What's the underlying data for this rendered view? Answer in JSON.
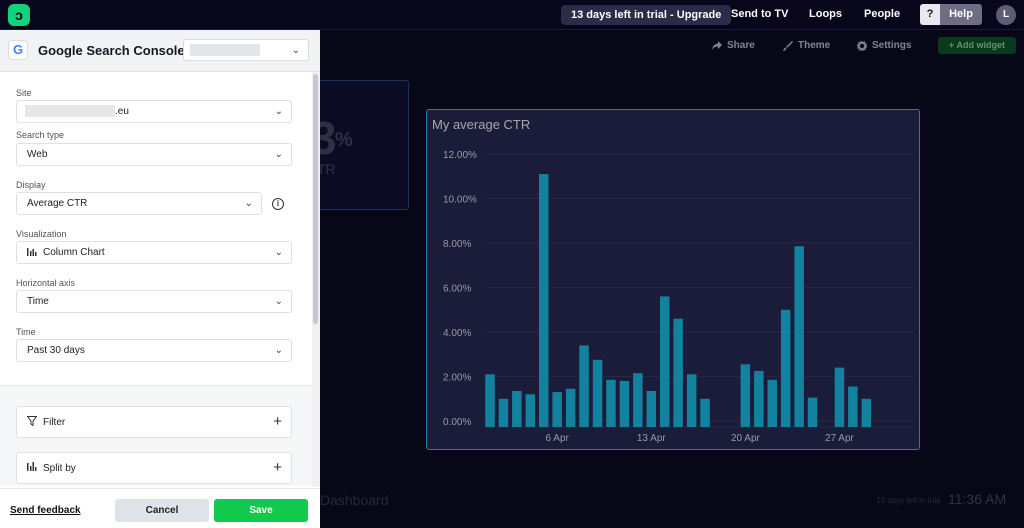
{
  "topbar": {
    "trial_label": "13 days left in trial - Upgrade",
    "links": [
      "Send to TV",
      "Loops",
      "People"
    ],
    "help_q": "?",
    "help_label": "Help",
    "avatar_initial": "L"
  },
  "dashboard": {
    "toolbar": {
      "share": "Share",
      "theme": "Theme",
      "settings": "Settings",
      "add_widget": "+ Add widget"
    },
    "stat_widget": {
      "value": "3",
      "unit": "%",
      "caption": "TR"
    },
    "name": "Dashboard",
    "trial_note": "13 days left in trial",
    "clock": "11:36 AM"
  },
  "chart_data": {
    "type": "bar",
    "title": "My average CTR",
    "xlabel": "",
    "ylabel": "",
    "ylim": [
      0,
      12
    ],
    "yticks": [
      "0.00%",
      "2.00%",
      "4.00%",
      "6.00%",
      "8.00%",
      "10.00%",
      "12.00%"
    ],
    "xtick_labels": [
      {
        "day": 6,
        "label": "6 Apr"
      },
      {
        "day": 13,
        "label": "13 Apr"
      },
      {
        "day": 20,
        "label": "20 Apr"
      },
      {
        "day": 27,
        "label": "27 Apr"
      }
    ],
    "days": [
      1,
      2,
      3,
      4,
      5,
      6,
      7,
      8,
      9,
      10,
      11,
      12,
      13,
      14,
      15,
      16,
      17,
      18,
      19,
      20,
      21,
      22,
      23,
      24,
      25,
      26,
      27,
      28,
      29,
      30
    ],
    "values": [
      2.1,
      1.0,
      1.35,
      1.2,
      11.1,
      1.3,
      1.45,
      3.4,
      2.75,
      1.85,
      1.8,
      2.15,
      1.35,
      5.6,
      4.6,
      2.1,
      1.0,
      0,
      0,
      2.55,
      2.25,
      1.85,
      5.0,
      7.85,
      1.05,
      0,
      2.4,
      1.55,
      1.0,
      0
    ],
    "bar_color": "#1ec8f5",
    "grid": true
  },
  "panel": {
    "title": "Google Search Console",
    "g_letter": "G",
    "site_label": "Site",
    "site_suffix": ".eu",
    "search_type_label": "Search type",
    "search_type_value": "Web",
    "display_label": "Display",
    "display_value": "Average CTR",
    "visualization_label": "Visualization",
    "visualization_value": "Column Chart",
    "horizontal_axis_label": "Horizontal axis",
    "horizontal_axis_value": "Time",
    "time_label": "Time",
    "time_value": "Past 30 days",
    "filter_label": "Filter",
    "split_label": "Split by",
    "feedback_label": "Send feedback",
    "cancel_label": "Cancel",
    "save_label": "Save"
  }
}
